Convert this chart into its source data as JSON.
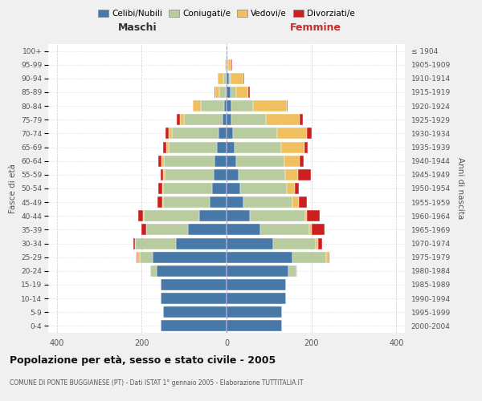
{
  "age_groups": [
    "0-4",
    "5-9",
    "10-14",
    "15-19",
    "20-24",
    "25-29",
    "30-34",
    "35-39",
    "40-44",
    "45-49",
    "50-54",
    "55-59",
    "60-64",
    "65-69",
    "70-74",
    "75-79",
    "80-84",
    "85-89",
    "90-94",
    "95-99",
    "100+"
  ],
  "birth_years": [
    "2000-2004",
    "1995-1999",
    "1990-1994",
    "1985-1989",
    "1980-1984",
    "1975-1979",
    "1970-1974",
    "1965-1969",
    "1960-1964",
    "1955-1959",
    "1950-1954",
    "1945-1949",
    "1940-1944",
    "1935-1939",
    "1930-1934",
    "1925-1929",
    "1920-1924",
    "1915-1919",
    "1910-1914",
    "1905-1909",
    "≤ 1904"
  ],
  "colors": {
    "celibi": "#4878a8",
    "coniugati": "#b8cca0",
    "vedovi": "#f0c060",
    "divorziati": "#cc2020"
  },
  "males": {
    "celibi": [
      155,
      150,
      155,
      155,
      165,
      175,
      120,
      90,
      65,
      40,
      35,
      30,
      28,
      22,
      18,
      10,
      5,
      2,
      0,
      0,
      0
    ],
    "coniugati": [
      0,
      0,
      0,
      0,
      15,
      30,
      95,
      100,
      130,
      110,
      115,
      115,
      120,
      115,
      110,
      90,
      55,
      15,
      8,
      2,
      0
    ],
    "vedovi": [
      0,
      0,
      0,
      0,
      0,
      5,
      0,
      0,
      2,
      2,
      2,
      5,
      5,
      5,
      8,
      10,
      20,
      10,
      12,
      2,
      0
    ],
    "divorziati": [
      0,
      0,
      0,
      0,
      0,
      2,
      5,
      10,
      12,
      10,
      8,
      5,
      8,
      8,
      8,
      8,
      0,
      2,
      0,
      0,
      0
    ]
  },
  "females": {
    "celibi": [
      130,
      130,
      140,
      140,
      145,
      155,
      110,
      80,
      55,
      40,
      32,
      28,
      22,
      18,
      15,
      12,
      12,
      10,
      5,
      2,
      0
    ],
    "coniugati": [
      0,
      0,
      0,
      0,
      20,
      80,
      100,
      115,
      130,
      115,
      110,
      110,
      115,
      110,
      105,
      80,
      50,
      12,
      5,
      2,
      0
    ],
    "vedovi": [
      0,
      0,
      0,
      0,
      2,
      5,
      5,
      5,
      5,
      15,
      18,
      30,
      35,
      55,
      70,
      80,
      80,
      30,
      30,
      8,
      2
    ],
    "divorziati": [
      0,
      0,
      0,
      0,
      0,
      2,
      10,
      30,
      30,
      20,
      10,
      30,
      10,
      8,
      10,
      8,
      2,
      2,
      2,
      2,
      0
    ]
  },
  "xlim": 420,
  "title": "Popolazione per età, sesso e stato civile - 2005",
  "subtitle": "COMUNE DI PONTE BUGGIANESE (PT) - Dati ISTAT 1° gennaio 2005 - Elaborazione TUTTITALIA.IT",
  "ylabel_left": "Fasce di età",
  "ylabel_right": "Anni di nascita",
  "xlabel_left": "Maschi",
  "xlabel_right": "Femmine",
  "bg_color": "#f0f0f0",
  "plot_bg": "#ffffff",
  "legend_labels": [
    "Celibi/Nubili",
    "Coniugati/e",
    "Vedovi/e",
    "Divorziati/e"
  ]
}
